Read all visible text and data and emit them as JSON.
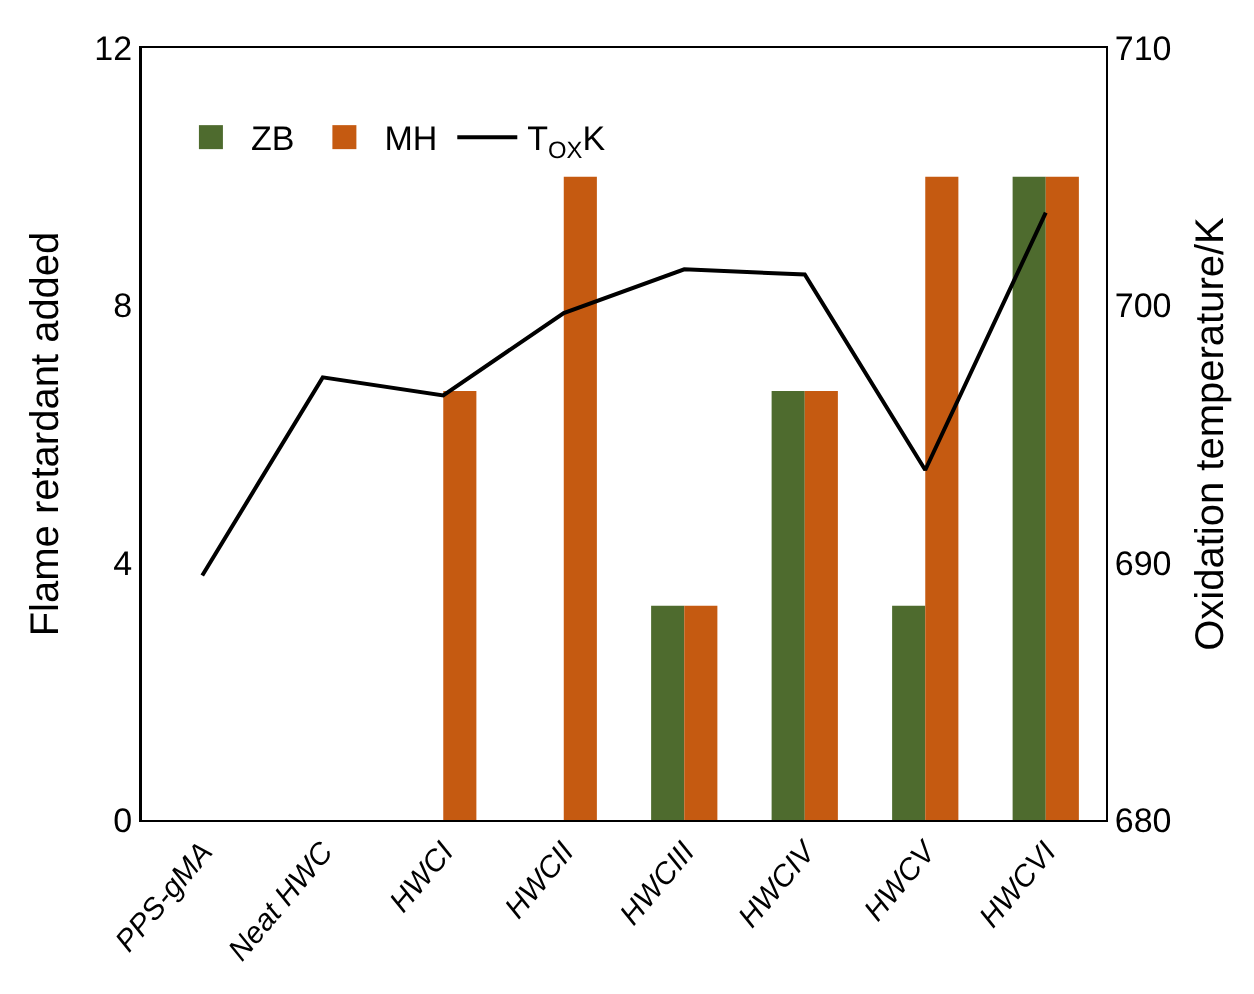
{
  "chart_data": {
    "type": "bar",
    "ylabel": "Flame retardant added",
    "y2label": "Oxidation temperature/K",
    "categories": [
      "PPS-gMA",
      "Neat HWC",
      "HWCI",
      "HWCII",
      "HWCIII",
      "HWCIV",
      "HWCV",
      "HWCVI"
    ],
    "series": [
      {
        "name": "ZB",
        "color": "#4e6b2e",
        "values": [
          0,
          0,
          0,
          0,
          3.33,
          6.67,
          3.33,
          10
        ]
      },
      {
        "name": "MH",
        "color": "#c55a11",
        "values": [
          0,
          0,
          6.67,
          10,
          3.33,
          6.67,
          10,
          10
        ]
      },
      {
        "name": "T$_{OX}$K",
        "type": "line",
        "axis": "y2",
        "color": "#000000",
        "values": [
          689.5,
          697.2,
          696.5,
          699.7,
          701.4,
          701.2,
          693.6,
          703.6
        ]
      }
    ],
    "ylim": [
      0,
      12
    ],
    "yticks": [
      0,
      4,
      8,
      12
    ],
    "y2lim": [
      680,
      710
    ],
    "y2ticks": [
      680,
      690,
      700,
      710
    ],
    "grid": false,
    "legend": "top left",
    "marker": "none",
    "line_style": "solid"
  }
}
